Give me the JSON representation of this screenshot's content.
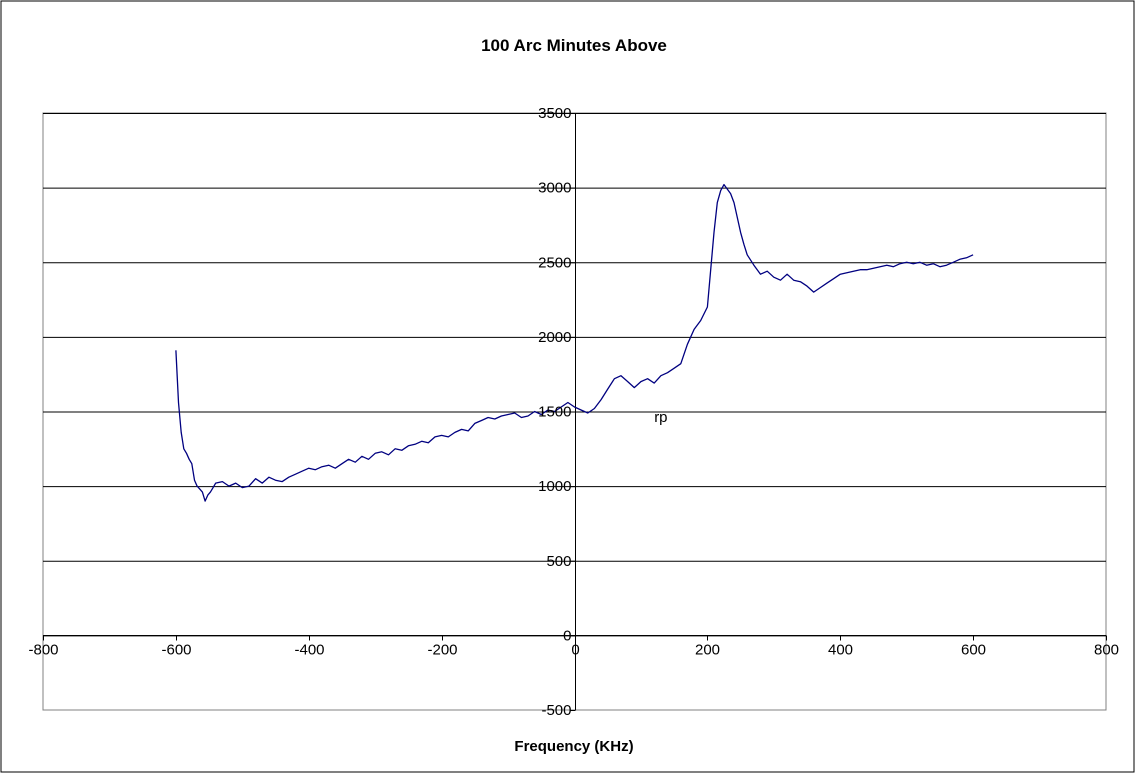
{
  "chart_data": {
    "type": "line",
    "title": "100 Arc Minutes Above",
    "xlabel": "Frequency (KHz)",
    "ylabel": "",
    "xlim": [
      -800,
      800
    ],
    "ylim": [
      -500,
      3500
    ],
    "x_ticks": [
      -800,
      -600,
      -400,
      -200,
      0,
      200,
      400,
      600,
      800
    ],
    "y_ticks": [
      -500,
      0,
      500,
      1000,
      1500,
      2000,
      2500,
      3000,
      3500
    ],
    "grid": "horizontal",
    "legend": "none",
    "annotations": [
      {
        "text": "rp",
        "x": 130,
        "y": 1430
      }
    ],
    "series": [
      {
        "color": "#000080",
        "x": [
          -600,
          -596,
          -592,
          -588,
          -584,
          -580,
          -576,
          -572,
          -568,
          -564,
          -560,
          -556,
          -552,
          -548,
          -544,
          -540,
          -530,
          -520,
          -510,
          -500,
          -490,
          -480,
          -470,
          -460,
          -450,
          -440,
          -430,
          -420,
          -410,
          -400,
          -390,
          -380,
          -370,
          -360,
          -350,
          -340,
          -330,
          -320,
          -310,
          -300,
          -290,
          -280,
          -270,
          -260,
          -250,
          -240,
          -230,
          -220,
          -210,
          -200,
          -190,
          -180,
          -170,
          -160,
          -150,
          -140,
          -130,
          -120,
          -110,
          -100,
          -90,
          -80,
          -70,
          -60,
          -50,
          -40,
          -30,
          -20,
          -10,
          0,
          10,
          20,
          30,
          40,
          50,
          60,
          70,
          80,
          90,
          100,
          110,
          120,
          130,
          140,
          150,
          160,
          170,
          180,
          190,
          200,
          205,
          210,
          215,
          220,
          225,
          230,
          235,
          240,
          245,
          250,
          255,
          260,
          270,
          280,
          290,
          300,
          310,
          320,
          330,
          340,
          350,
          360,
          370,
          380,
          390,
          400,
          410,
          420,
          430,
          440,
          450,
          460,
          470,
          480,
          490,
          500,
          510,
          520,
          530,
          540,
          550,
          560,
          570,
          580,
          590,
          600
        ],
        "values": [
          1910,
          1560,
          1360,
          1250,
          1220,
          1180,
          1150,
          1040,
          1000,
          980,
          960,
          900,
          940,
          960,
          990,
          1020,
          1030,
          1000,
          1020,
          990,
          1000,
          1050,
          1020,
          1060,
          1040,
          1030,
          1060,
          1080,
          1100,
          1120,
          1110,
          1130,
          1140,
          1120,
          1150,
          1180,
          1160,
          1200,
          1180,
          1220,
          1230,
          1210,
          1250,
          1240,
          1270,
          1280,
          1300,
          1290,
          1330,
          1340,
          1330,
          1360,
          1380,
          1370,
          1420,
          1440,
          1460,
          1450,
          1470,
          1480,
          1490,
          1460,
          1470,
          1500,
          1480,
          1510,
          1500,
          1530,
          1560,
          1530,
          1510,
          1490,
          1520,
          1580,
          1650,
          1720,
          1740,
          1700,
          1660,
          1700,
          1720,
          1690,
          1740,
          1760,
          1790,
          1820,
          1950,
          2050,
          2110,
          2200,
          2450,
          2700,
          2900,
          2980,
          3020,
          2990,
          2960,
          2900,
          2800,
          2700,
          2620,
          2550,
          2480,
          2420,
          2440,
          2400,
          2380,
          2420,
          2380,
          2370,
          2340,
          2300,
          2330,
          2360,
          2390,
          2420,
          2430,
          2440,
          2450,
          2450,
          2460,
          2470,
          2480,
          2470,
          2490,
          2500,
          2490,
          2500,
          2480,
          2490,
          2470,
          2480,
          2500,
          2520,
          2530,
          2550
        ]
      }
    ]
  }
}
